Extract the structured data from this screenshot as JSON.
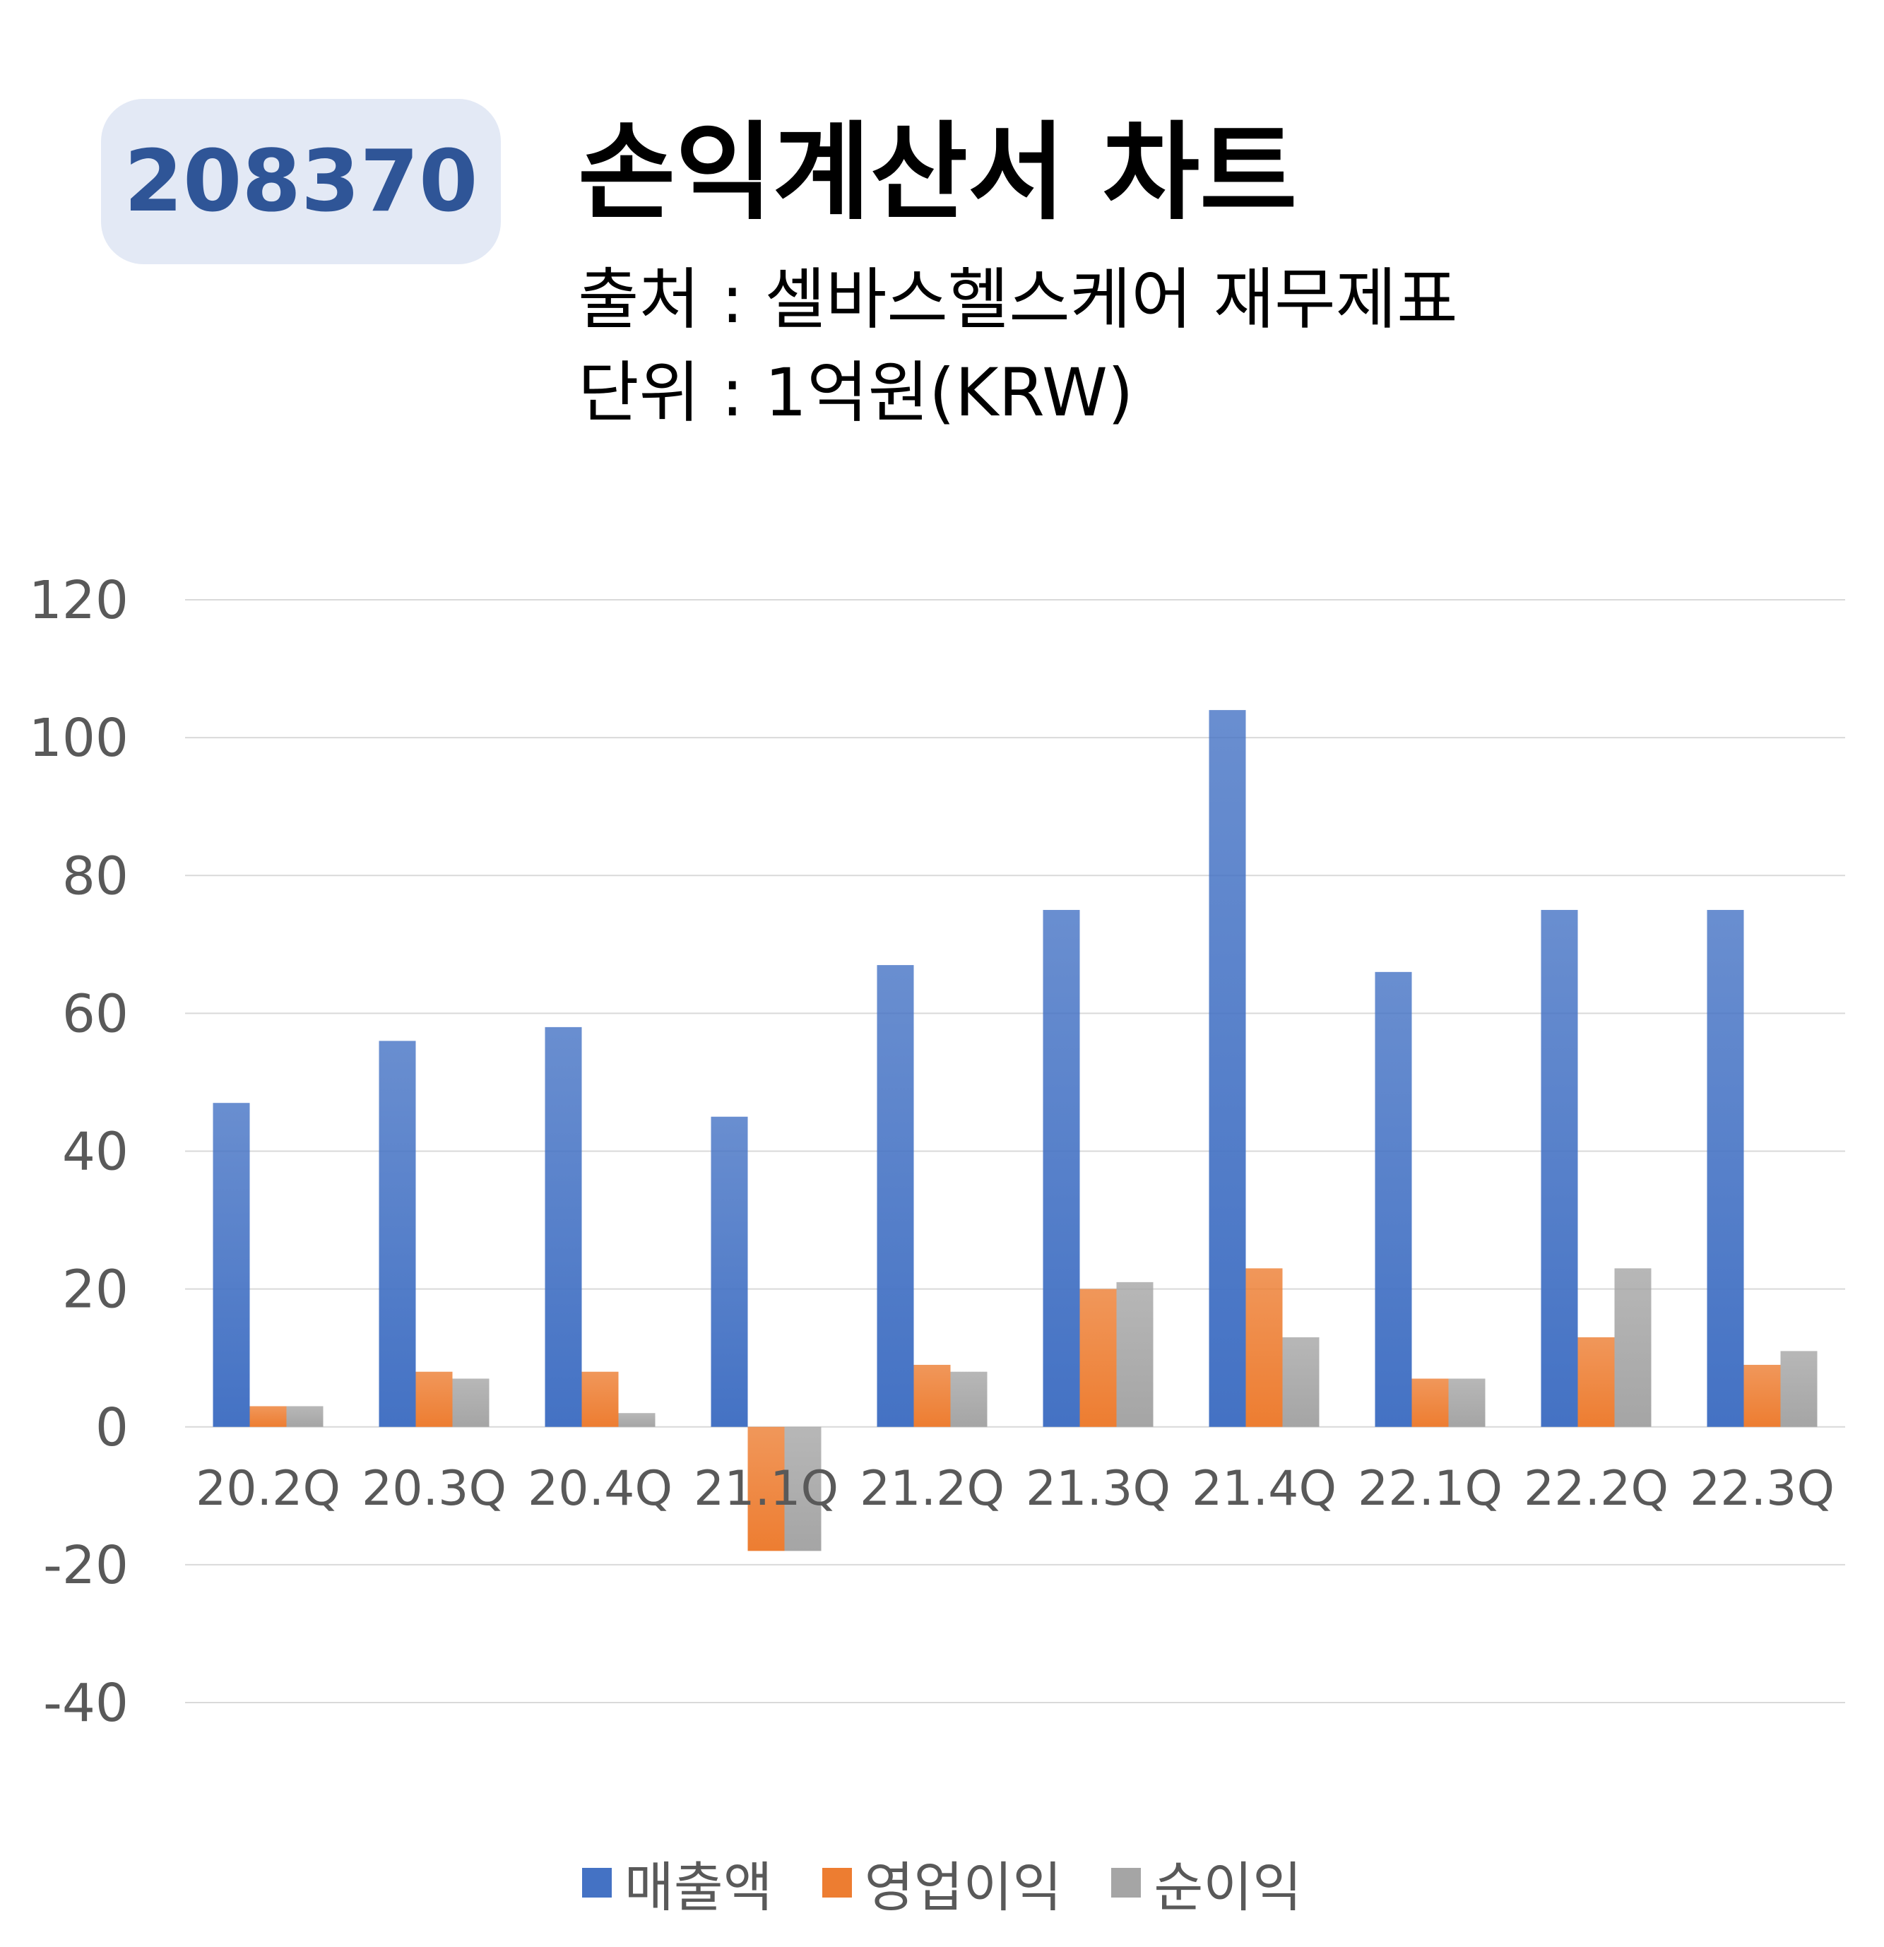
{
  "header": {
    "code": "208370",
    "title": "손익계산서 차트",
    "source": "출처 : 셀바스헬스케어 재무제표",
    "unit": "단위 : 1억원(KRW)"
  },
  "colors": {
    "매출액": "#4472c4",
    "영업이익": "#ed7d31",
    "순이익": "#a5a5a5"
  },
  "chart_data": {
    "type": "bar",
    "categories": [
      "20.2Q",
      "20.3Q",
      "20.4Q",
      "21.1Q",
      "21.2Q",
      "21.3Q",
      "21.4Q",
      "22.1Q",
      "22.2Q",
      "22.3Q"
    ],
    "series": [
      {
        "name": "매출액",
        "values": [
          47,
          56,
          58,
          45,
          67,
          75,
          104,
          66,
          75,
          75
        ]
      },
      {
        "name": "영업이익",
        "values": [
          3,
          8,
          8,
          -18,
          9,
          20,
          23,
          7,
          13,
          9
        ]
      },
      {
        "name": "순이익",
        "values": [
          3,
          7,
          2,
          -18,
          8,
          21,
          13,
          7,
          23,
          11
        ]
      }
    ],
    "ylim": [
      -40,
      120
    ],
    "yticks": [
      -40,
      -20,
      0,
      20,
      40,
      60,
      80,
      100,
      120
    ],
    "grid": true,
    "legend": "bottom"
  }
}
